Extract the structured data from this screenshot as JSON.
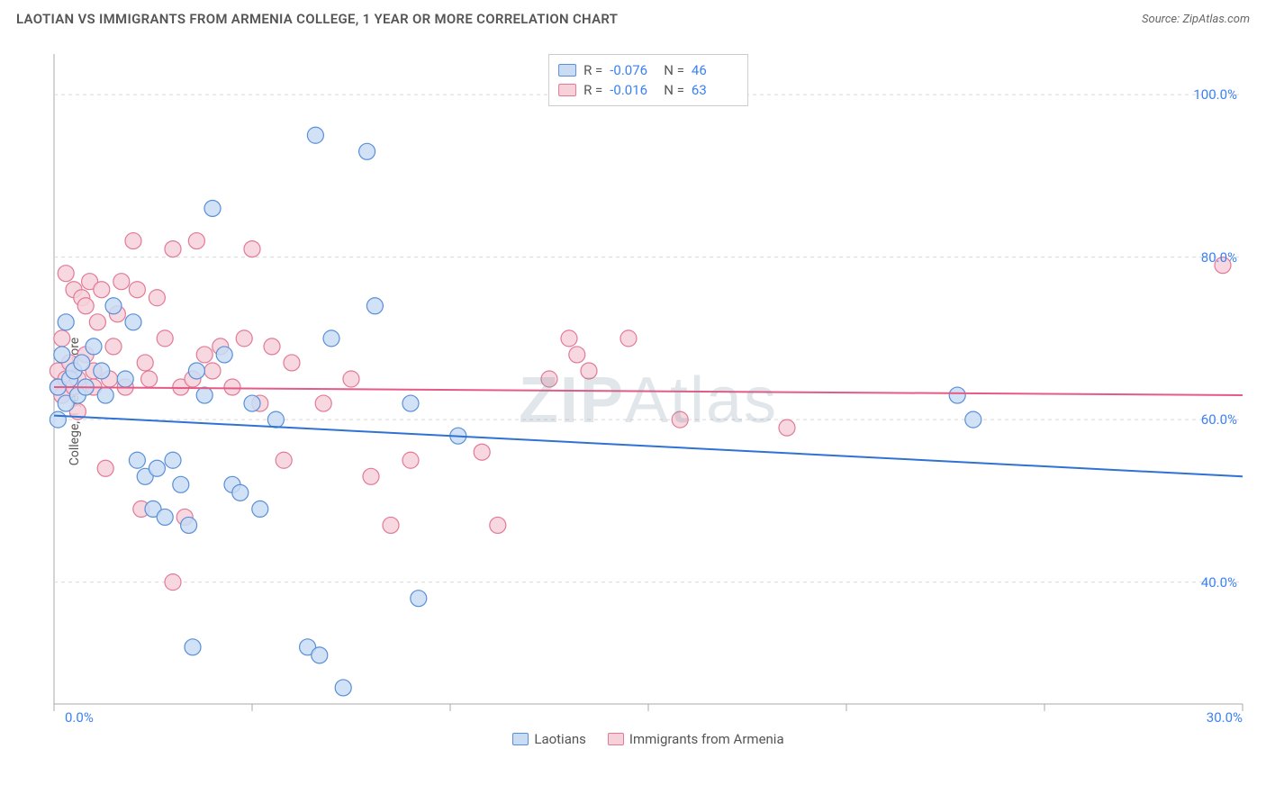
{
  "header": {
    "title": "LAOTIAN VS IMMIGRANTS FROM ARMENIA COLLEGE, 1 YEAR OR MORE CORRELATION CHART",
    "source_prefix": "Source: ",
    "source_name": "ZipAtlas.com"
  },
  "y_axis_label": "College, 1 year or more",
  "watermark": {
    "bold": "ZIP",
    "rest": "Atlas"
  },
  "chart": {
    "type": "scatter",
    "background_color": "#ffffff",
    "grid_color": "#d9d9d9",
    "grid_dash": "4,4",
    "border_color": "#aaaaaa",
    "x": {
      "min": 0,
      "max": 30,
      "ticks": [
        0,
        5,
        10,
        15,
        20,
        25,
        30
      ],
      "labeled_ticks": {
        "0": "0.0%",
        "30": "30.0%"
      }
    },
    "y": {
      "min": 25,
      "max": 105,
      "gridlines": [
        40,
        60,
        80,
        100
      ],
      "labels": {
        "40": "40.0%",
        "60": "60.0%",
        "80": "80.0%",
        "100": "100.0%"
      }
    },
    "series": [
      {
        "id": "laotians",
        "label": "Laotians",
        "marker_fill": "#c9dcf4",
        "marker_stroke": "#5a8fd6",
        "marker_radius": 9,
        "trend_color": "#2f72d6",
        "trend_width": 2,
        "trend": {
          "y_at_xmin": 60.5,
          "y_at_xmax": 53.0
        },
        "R": "-0.076",
        "N": "46",
        "points": [
          [
            0.1,
            64
          ],
          [
            0.1,
            60
          ],
          [
            0.2,
            68
          ],
          [
            0.3,
            62
          ],
          [
            0.3,
            72
          ],
          [
            0.4,
            65
          ],
          [
            0.5,
            66
          ],
          [
            0.6,
            63
          ],
          [
            0.7,
            67
          ],
          [
            0.8,
            64
          ],
          [
            1.0,
            69
          ],
          [
            1.2,
            66
          ],
          [
            1.3,
            63
          ],
          [
            1.5,
            74
          ],
          [
            1.8,
            65
          ],
          [
            2.0,
            72
          ],
          [
            2.1,
            55
          ],
          [
            2.3,
            53
          ],
          [
            2.5,
            49
          ],
          [
            2.6,
            54
          ],
          [
            2.8,
            48
          ],
          [
            3.0,
            55
          ],
          [
            3.2,
            52
          ],
          [
            3.4,
            47
          ],
          [
            3.5,
            32
          ],
          [
            3.6,
            66
          ],
          [
            3.8,
            63
          ],
          [
            4.0,
            86
          ],
          [
            4.3,
            68
          ],
          [
            4.5,
            52
          ],
          [
            4.7,
            51
          ],
          [
            5.0,
            62
          ],
          [
            5.2,
            49
          ],
          [
            5.6,
            60
          ],
          [
            6.4,
            32
          ],
          [
            6.6,
            95
          ],
          [
            6.7,
            31
          ],
          [
            7.0,
            70
          ],
          [
            7.3,
            27
          ],
          [
            7.9,
            93
          ],
          [
            8.1,
            74
          ],
          [
            9.0,
            62
          ],
          [
            9.2,
            38
          ],
          [
            10.2,
            58
          ],
          [
            22.8,
            63
          ],
          [
            23.2,
            60
          ]
        ]
      },
      {
        "id": "armenia",
        "label": "Immigrants from Armenia",
        "marker_fill": "#f7d1da",
        "marker_stroke": "#e27a94",
        "marker_radius": 9,
        "trend_color": "#e65a86",
        "trend_width": 2,
        "trend": {
          "y_at_xmin": 64.0,
          "y_at_xmax": 63.0
        },
        "R": "-0.016",
        "N": "63",
        "points": [
          [
            0.1,
            66
          ],
          [
            0.1,
            64
          ],
          [
            0.2,
            63
          ],
          [
            0.2,
            70
          ],
          [
            0.3,
            65
          ],
          [
            0.3,
            78
          ],
          [
            0.4,
            67
          ],
          [
            0.5,
            64
          ],
          [
            0.5,
            76
          ],
          [
            0.6,
            65
          ],
          [
            0.6,
            61
          ],
          [
            0.7,
            75
          ],
          [
            0.8,
            68
          ],
          [
            0.8,
            74
          ],
          [
            0.9,
            77
          ],
          [
            1.0,
            66
          ],
          [
            1.0,
            64
          ],
          [
            1.1,
            72
          ],
          [
            1.2,
            76
          ],
          [
            1.3,
            54
          ],
          [
            1.4,
            65
          ],
          [
            1.5,
            69
          ],
          [
            1.6,
            73
          ],
          [
            1.7,
            77
          ],
          [
            1.8,
            64
          ],
          [
            2.0,
            82
          ],
          [
            2.1,
            76
          ],
          [
            2.2,
            49
          ],
          [
            2.3,
            67
          ],
          [
            2.4,
            65
          ],
          [
            2.6,
            75
          ],
          [
            2.8,
            70
          ],
          [
            3.0,
            81
          ],
          [
            3.0,
            40
          ],
          [
            3.2,
            64
          ],
          [
            3.3,
            48
          ],
          [
            3.5,
            65
          ],
          [
            3.6,
            82
          ],
          [
            3.8,
            68
          ],
          [
            4.0,
            66
          ],
          [
            4.2,
            69
          ],
          [
            4.5,
            64
          ],
          [
            4.8,
            70
          ],
          [
            5.0,
            81
          ],
          [
            5.2,
            62
          ],
          [
            5.5,
            69
          ],
          [
            5.8,
            55
          ],
          [
            6.0,
            67
          ],
          [
            6.8,
            62
          ],
          [
            7.5,
            65
          ],
          [
            8.0,
            53
          ],
          [
            8.5,
            47
          ],
          [
            9.0,
            55
          ],
          [
            10.8,
            56
          ],
          [
            11.2,
            47
          ],
          [
            12.5,
            65
          ],
          [
            13.0,
            70
          ],
          [
            13.2,
            68
          ],
          [
            13.5,
            66
          ],
          [
            14.5,
            70
          ],
          [
            15.8,
            60
          ],
          [
            18.5,
            59
          ],
          [
            29.5,
            79
          ]
        ]
      }
    ]
  },
  "legend_top": {
    "r_prefix": "R =",
    "n_prefix": "N ="
  },
  "colors": {
    "blue_text": "#3b82f6",
    "title_text": "#555"
  }
}
